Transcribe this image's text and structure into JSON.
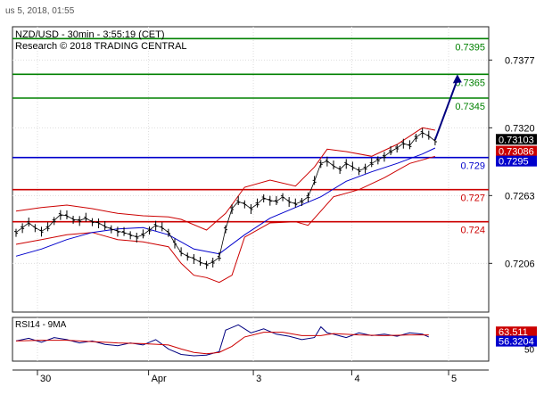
{
  "header": {
    "datetime": "us 5, 2018, 01:55"
  },
  "chart_data": {
    "type": "line",
    "title": "NZD/USD - 30min - 3:55:19 (CET)",
    "subtitle": "Research © 2018 TRADING CENTRAL",
    "y_ticks": [
      "0.7377",
      "0.7320",
      "0.7263",
      "0.7206"
    ],
    "ylim": [
      0.7165,
      0.7405
    ],
    "x_ticks": [
      "30",
      "Apr",
      "3",
      "4",
      "5"
    ],
    "grid": true,
    "levels": [
      {
        "label": "0.7395",
        "value": 0.7395,
        "color": "#008000"
      },
      {
        "label": "0.7365",
        "value": 0.7365,
        "color": "#008000"
      },
      {
        "label": "0.7345",
        "value": 0.7345,
        "color": "#008000"
      },
      {
        "label": "0.729",
        "value": 0.7295,
        "color": "#0000cc"
      },
      {
        "label": "0.727",
        "value": 0.7268,
        "color": "#cc0000"
      },
      {
        "label": "0.724",
        "value": 0.7241,
        "color": "#cc0000"
      }
    ],
    "price_badges": [
      {
        "label": "0.73103",
        "value": 0.73103,
        "bg": "#000000"
      },
      {
        "label": "0.73086",
        "value": 0.73086,
        "bg": "#cc0000"
      },
      {
        "label": "0.7295",
        "value": 0.7295,
        "bg": "#0000cc"
      }
    ],
    "price_series": [
      [
        0,
        0.7232
      ],
      [
        4,
        0.7236
      ],
      [
        8,
        0.724
      ],
      [
        12,
        0.7236
      ],
      [
        16,
        0.7233
      ],
      [
        20,
        0.7236
      ],
      [
        24,
        0.7242
      ],
      [
        28,
        0.7247
      ],
      [
        32,
        0.7246
      ],
      [
        36,
        0.7243
      ],
      [
        40,
        0.7242
      ],
      [
        44,
        0.7244
      ],
      [
        48,
        0.7241
      ],
      [
        52,
        0.724
      ],
      [
        56,
        0.7237
      ],
      [
        60,
        0.7235
      ],
      [
        64,
        0.7233
      ],
      [
        68,
        0.7232
      ],
      [
        72,
        0.723
      ],
      [
        76,
        0.7228
      ],
      [
        80,
        0.723
      ],
      [
        84,
        0.7234
      ],
      [
        88,
        0.7238
      ],
      [
        92,
        0.7236
      ],
      [
        96,
        0.7232
      ],
      [
        100,
        0.7223
      ],
      [
        104,
        0.7215
      ],
      [
        108,
        0.7212
      ],
      [
        112,
        0.721
      ],
      [
        116,
        0.7207
      ],
      [
        120,
        0.7205
      ],
      [
        124,
        0.7207
      ],
      [
        128,
        0.7211
      ],
      [
        132,
        0.7235
      ],
      [
        136,
        0.7252
      ],
      [
        140,
        0.7258
      ],
      [
        144,
        0.7256
      ],
      [
        148,
        0.7252
      ],
      [
        152,
        0.7256
      ],
      [
        156,
        0.7261
      ],
      [
        160,
        0.7259
      ],
      [
        164,
        0.7258
      ],
      [
        168,
        0.7262
      ],
      [
        172,
        0.7258
      ],
      [
        176,
        0.7256
      ],
      [
        180,
        0.7258
      ],
      [
        184,
        0.7262
      ],
      [
        188,
        0.7275
      ],
      [
        192,
        0.729
      ],
      [
        196,
        0.7292
      ],
      [
        200,
        0.7288
      ],
      [
        204,
        0.7285
      ],
      [
        208,
        0.729
      ],
      [
        212,
        0.7287
      ],
      [
        216,
        0.7284
      ],
      [
        220,
        0.7286
      ],
      [
        224,
        0.729
      ],
      [
        228,
        0.7293
      ],
      [
        232,
        0.7296
      ],
      [
        236,
        0.73
      ],
      [
        240,
        0.7303
      ],
      [
        244,
        0.7307
      ],
      [
        248,
        0.7305
      ],
      [
        252,
        0.7312
      ],
      [
        256,
        0.7316
      ],
      [
        260,
        0.7313
      ],
      [
        264,
        0.7309
      ]
    ],
    "forecast_arrow": {
      "from": [
        264,
        0.731
      ],
      "to": [
        278,
        0.7365
      ],
      "color": "#000080"
    },
    "ma_series": [
      [
        0,
        0.7212
      ],
      [
        16,
        0.7218
      ],
      [
        32,
        0.7226
      ],
      [
        48,
        0.7232
      ],
      [
        64,
        0.7235
      ],
      [
        80,
        0.7236
      ],
      [
        96,
        0.723
      ],
      [
        112,
        0.7218
      ],
      [
        128,
        0.7214
      ],
      [
        144,
        0.723
      ],
      [
        160,
        0.7244
      ],
      [
        176,
        0.7253
      ],
      [
        192,
        0.7262
      ],
      [
        208,
        0.7275
      ],
      [
        224,
        0.7283
      ],
      [
        240,
        0.729
      ],
      [
        256,
        0.7298
      ],
      [
        264,
        0.7303
      ]
    ],
    "bb_upper": [
      [
        0,
        0.725
      ],
      [
        16,
        0.7253
      ],
      [
        32,
        0.7255
      ],
      [
        48,
        0.7252
      ],
      [
        64,
        0.7248
      ],
      [
        80,
        0.7246
      ],
      [
        96,
        0.7245
      ],
      [
        104,
        0.7243
      ],
      [
        120,
        0.7234
      ],
      [
        132,
        0.7248
      ],
      [
        144,
        0.727
      ],
      [
        160,
        0.7276
      ],
      [
        176,
        0.7271
      ],
      [
        188,
        0.7287
      ],
      [
        196,
        0.7302
      ],
      [
        208,
        0.73
      ],
      [
        224,
        0.7296
      ],
      [
        240,
        0.7306
      ],
      [
        256,
        0.732
      ],
      [
        264,
        0.7318
      ]
    ],
    "bb_lower": [
      [
        0,
        0.7222
      ],
      [
        16,
        0.7226
      ],
      [
        32,
        0.723
      ],
      [
        48,
        0.7232
      ],
      [
        64,
        0.7226
      ],
      [
        80,
        0.7224
      ],
      [
        96,
        0.722
      ],
      [
        104,
        0.7206
      ],
      [
        112,
        0.7196
      ],
      [
        120,
        0.7194
      ],
      [
        128,
        0.719
      ],
      [
        136,
        0.7196
      ],
      [
        144,
        0.7228
      ],
      [
        160,
        0.724
      ],
      [
        176,
        0.7241
      ],
      [
        184,
        0.7238
      ],
      [
        192,
        0.725
      ],
      [
        200,
        0.7262
      ],
      [
        216,
        0.7268
      ],
      [
        232,
        0.7278
      ],
      [
        248,
        0.729
      ],
      [
        264,
        0.7296
      ]
    ],
    "rsi_panel": {
      "label": "RSI14 - 9MA",
      "badges": [
        {
          "label": "63.511",
          "value": 63.511,
          "bg": "#cc0000"
        },
        {
          "label": "56.3204",
          "value": 56.3204,
          "bg": "#0000cc"
        }
      ],
      "ticks": [
        "50"
      ],
      "ylim": [
        20,
        85
      ],
      "rsi": [
        [
          0,
          50
        ],
        [
          8,
          54
        ],
        [
          16,
          48
        ],
        [
          24,
          55
        ],
        [
          32,
          52
        ],
        [
          40,
          47
        ],
        [
          48,
          50
        ],
        [
          56,
          45
        ],
        [
          64,
          43
        ],
        [
          72,
          47
        ],
        [
          80,
          44
        ],
        [
          88,
          52
        ],
        [
          96,
          38
        ],
        [
          104,
          30
        ],
        [
          112,
          28
        ],
        [
          120,
          29
        ],
        [
          128,
          34
        ],
        [
          132,
          66
        ],
        [
          140,
          74
        ],
        [
          148,
          62
        ],
        [
          156,
          68
        ],
        [
          164,
          60
        ],
        [
          172,
          57
        ],
        [
          180,
          52
        ],
        [
          188,
          55
        ],
        [
          192,
          71
        ],
        [
          196,
          62
        ],
        [
          200,
          60
        ],
        [
          208,
          55
        ],
        [
          216,
          62
        ],
        [
          224,
          58
        ],
        [
          232,
          60
        ],
        [
          240,
          57
        ],
        [
          248,
          62
        ],
        [
          256,
          60
        ],
        [
          260,
          56
        ]
      ],
      "rsi_ma": [
        [
          0,
          50
        ],
        [
          16,
          51
        ],
        [
          32,
          51
        ],
        [
          48,
          49
        ],
        [
          64,
          47
        ],
        [
          80,
          46
        ],
        [
          96,
          44
        ],
        [
          104,
          38
        ],
        [
          112,
          33
        ],
        [
          120,
          31
        ],
        [
          128,
          33
        ],
        [
          136,
          42
        ],
        [
          144,
          56
        ],
        [
          156,
          63
        ],
        [
          168,
          63
        ],
        [
          180,
          58
        ],
        [
          192,
          58
        ],
        [
          200,
          61
        ],
        [
          216,
          59
        ],
        [
          232,
          58
        ],
        [
          248,
          59
        ],
        [
          260,
          59
        ]
      ]
    }
  }
}
